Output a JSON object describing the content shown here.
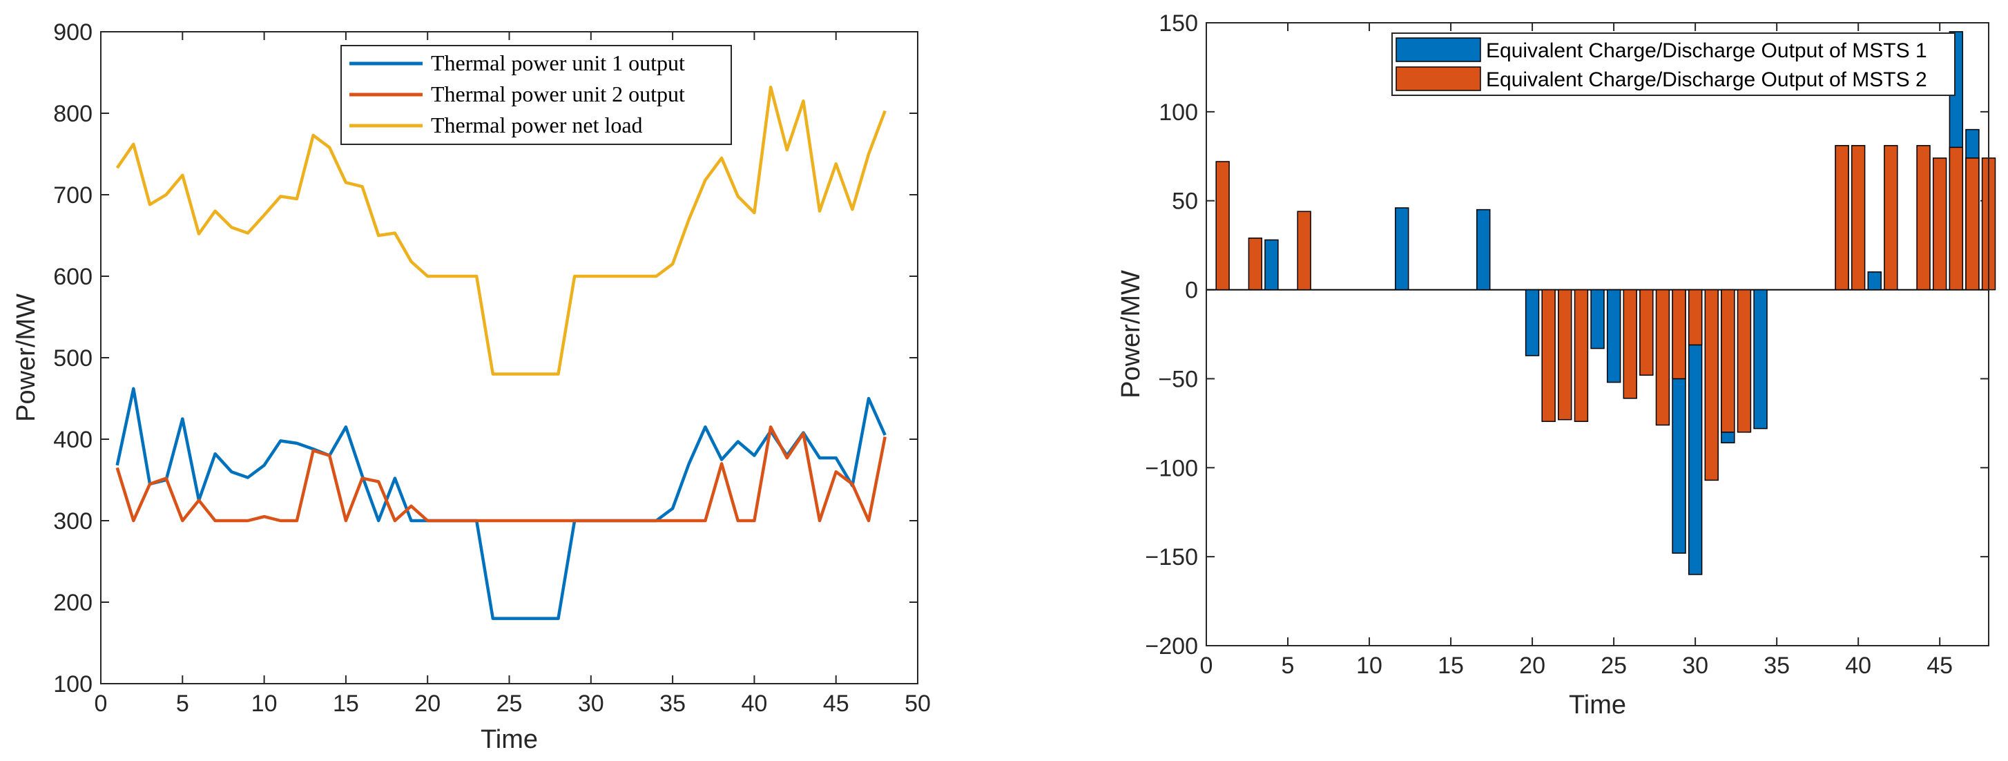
{
  "chart_data": [
    {
      "type": "line",
      "xlabel": "Time",
      "ylabel": "Power/MW",
      "xlim": [
        0,
        50
      ],
      "ylim": [
        100,
        900
      ],
      "xticks": [
        0,
        5,
        10,
        15,
        20,
        25,
        30,
        35,
        40,
        45,
        50
      ],
      "yticks": [
        100,
        200,
        300,
        400,
        500,
        600,
        700,
        800,
        900
      ],
      "legend_position": "top-right",
      "series": [
        {
          "name": "Thermal power unit 1 output",
          "color": "#0072BD",
          "x": [
            1,
            2,
            3,
            4,
            5,
            6,
            7,
            8,
            9,
            10,
            11,
            12,
            13,
            14,
            15,
            16,
            17,
            18,
            19,
            20,
            21,
            22,
            23,
            24,
            25,
            26,
            27,
            28,
            29,
            30,
            31,
            32,
            33,
            34,
            35,
            36,
            37,
            38,
            39,
            40,
            41,
            42,
            43,
            44,
            45,
            46,
            47,
            48
          ],
          "y": [
            368,
            462,
            345,
            350,
            425,
            325,
            382,
            360,
            353,
            368,
            398,
            395,
            388,
            380,
            415,
            355,
            300,
            352,
            300,
            300,
            300,
            300,
            300,
            180,
            180,
            180,
            180,
            180,
            300,
            300,
            300,
            300,
            300,
            300,
            315,
            370,
            415,
            375,
            397,
            380,
            410,
            380,
            408,
            377,
            377,
            343,
            450,
            405
          ]
        },
        {
          "name": "Thermal power unit 2 output",
          "color": "#D95319",
          "x": [
            1,
            2,
            3,
            4,
            5,
            6,
            7,
            8,
            9,
            10,
            11,
            12,
            13,
            14,
            15,
            16,
            17,
            18,
            19,
            20,
            21,
            22,
            23,
            24,
            25,
            26,
            27,
            28,
            29,
            30,
            31,
            32,
            33,
            34,
            35,
            36,
            37,
            38,
            39,
            40,
            41,
            42,
            43,
            44,
            45,
            46,
            47,
            48
          ],
          "y": [
            365,
            300,
            345,
            352,
            300,
            325,
            300,
            300,
            300,
            305,
            300,
            300,
            386,
            380,
            300,
            352,
            348,
            300,
            318,
            300,
            300,
            300,
            300,
            300,
            300,
            300,
            300,
            300,
            300,
            300,
            300,
            300,
            300,
            300,
            300,
            300,
            300,
            370,
            300,
            300,
            415,
            377,
            407,
            300,
            360,
            345,
            300,
            403
          ]
        },
        {
          "name": "Thermal power net load",
          "color": "#EDB120",
          "x": [
            1,
            2,
            3,
            4,
            5,
            6,
            7,
            8,
            9,
            10,
            11,
            12,
            13,
            14,
            15,
            16,
            17,
            18,
            19,
            20,
            21,
            22,
            23,
            24,
            25,
            26,
            27,
            28,
            29,
            30,
            31,
            32,
            33,
            34,
            35,
            36,
            37,
            38,
            39,
            40,
            41,
            42,
            43,
            44,
            45,
            46,
            47,
            48
          ],
          "y": [
            733,
            762,
            688,
            700,
            724,
            652,
            680,
            660,
            653,
            675,
            698,
            695,
            773,
            758,
            715,
            710,
            650,
            653,
            618,
            600,
            600,
            600,
            600,
            480,
            480,
            480,
            480,
            480,
            600,
            600,
            600,
            600,
            600,
            600,
            615,
            670,
            718,
            745,
            698,
            678,
            832,
            755,
            815,
            680,
            738,
            682,
            750,
            803
          ]
        }
      ]
    },
    {
      "type": "bar",
      "xlabel": "Time",
      "ylabel": "Power/MW",
      "xlim": [
        0,
        48
      ],
      "ylim": [
        -200,
        150
      ],
      "xticks": [
        0,
        5,
        10,
        15,
        20,
        25,
        30,
        35,
        40,
        45
      ],
      "yticks": [
        -200,
        -150,
        -100,
        -50,
        0,
        50,
        100,
        150
      ],
      "legend_position": "top-right",
      "series": [
        {
          "name": "Equivalent Charge/Discharge Output of MSTS 1",
          "color": "#0072BD",
          "x": [
            4,
            12,
            17,
            20,
            24,
            25,
            29,
            30,
            32,
            34,
            39,
            41,
            46,
            47
          ],
          "values": [
            28,
            46,
            45,
            -37,
            -33,
            -52,
            -148,
            -160,
            -86,
            -78,
            81,
            10,
            145,
            90
          ]
        },
        {
          "name": "Equivalent Charge/Discharge Output of MSTS 2",
          "color": "#D95319",
          "x": [
            1,
            3,
            6,
            21,
            22,
            23,
            26,
            27,
            28,
            29,
            30,
            31,
            32,
            33,
            39,
            40,
            42,
            44,
            45,
            46,
            47,
            48
          ],
          "values": [
            72,
            29,
            44,
            -74,
            -73,
            -74,
            -61,
            -48,
            -76,
            -50,
            -31,
            -107,
            -80,
            -80,
            81,
            81,
            81,
            81,
            74,
            80,
            74,
            74
          ]
        }
      ]
    }
  ]
}
